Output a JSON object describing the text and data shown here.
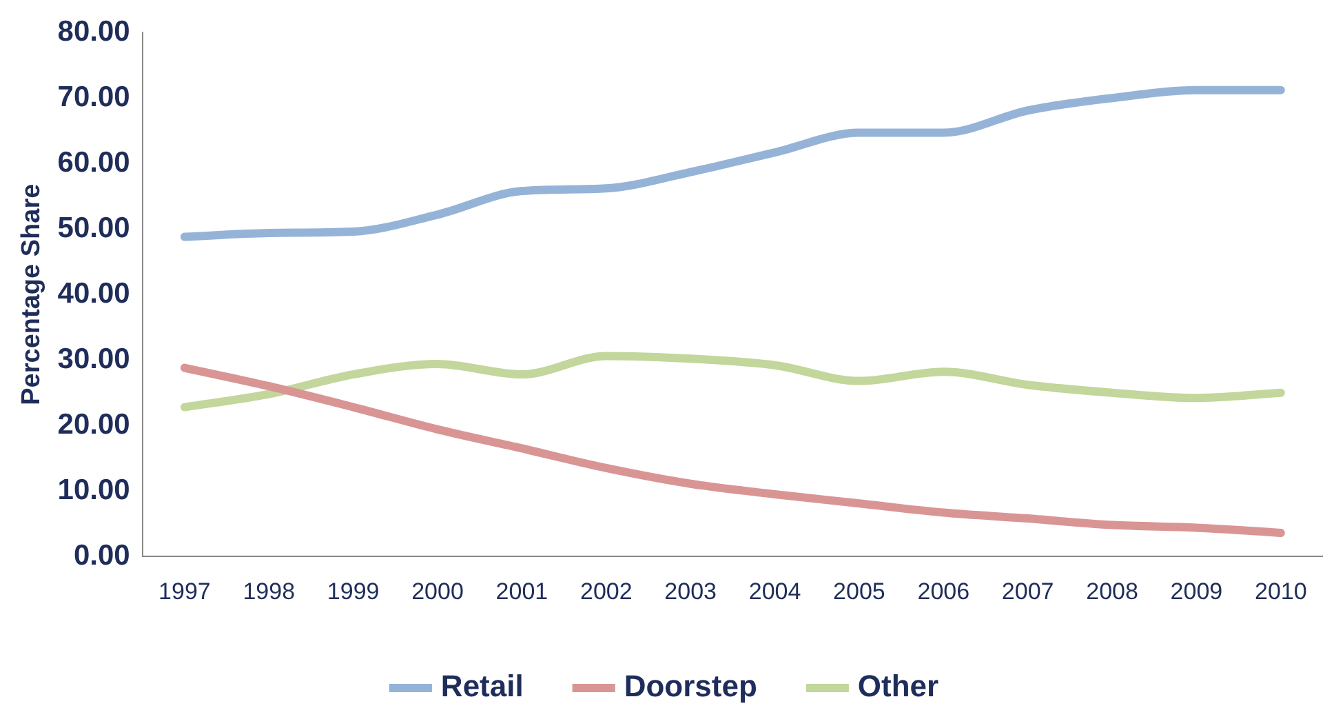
{
  "chart_data": {
    "type": "line",
    "ylabel": "Percentage Share",
    "categories": [
      "1997",
      "1998",
      "1999",
      "2000",
      "2001",
      "2002",
      "2003",
      "2004",
      "2005",
      "2006",
      "2007",
      "2008",
      "2009",
      "2010"
    ],
    "series": [
      {
        "name": "Retail",
        "color": "#95b3d7",
        "values": [
          48.8,
          49.4,
          49.6,
          52.2,
          55.8,
          56.2,
          58.7,
          61.7,
          64.7,
          64.7,
          68.1,
          70.0,
          71.2,
          71.2
        ]
      },
      {
        "name": "Doorstep",
        "color": "#d99594",
        "values": [
          28.8,
          26.0,
          22.8,
          19.4,
          16.5,
          13.5,
          11.1,
          9.5,
          8.1,
          6.7,
          5.8,
          4.8,
          4.4,
          3.6
        ]
      },
      {
        "name": "Other",
        "color": "#c3d69b",
        "values": [
          22.8,
          24.8,
          27.8,
          29.4,
          27.8,
          30.6,
          30.2,
          29.2,
          26.8,
          28.2,
          26.2,
          25.0,
          24.2,
          25.0
        ]
      }
    ],
    "ylim": [
      0,
      80
    ],
    "yticks": [
      {
        "value": 0,
        "label": "0.00"
      },
      {
        "value": 10,
        "label": "10.00"
      },
      {
        "value": 20,
        "label": "20.00"
      },
      {
        "value": 30,
        "label": "30.00"
      },
      {
        "value": 40,
        "label": "40.00"
      },
      {
        "value": 50,
        "label": "50.00"
      },
      {
        "value": 60,
        "label": "60.00"
      },
      {
        "value": 70,
        "label": "70.00"
      },
      {
        "value": 80,
        "label": "80.00"
      }
    ],
    "grid": false,
    "legend": "bottom",
    "marker": "none",
    "line_style": "solid"
  }
}
